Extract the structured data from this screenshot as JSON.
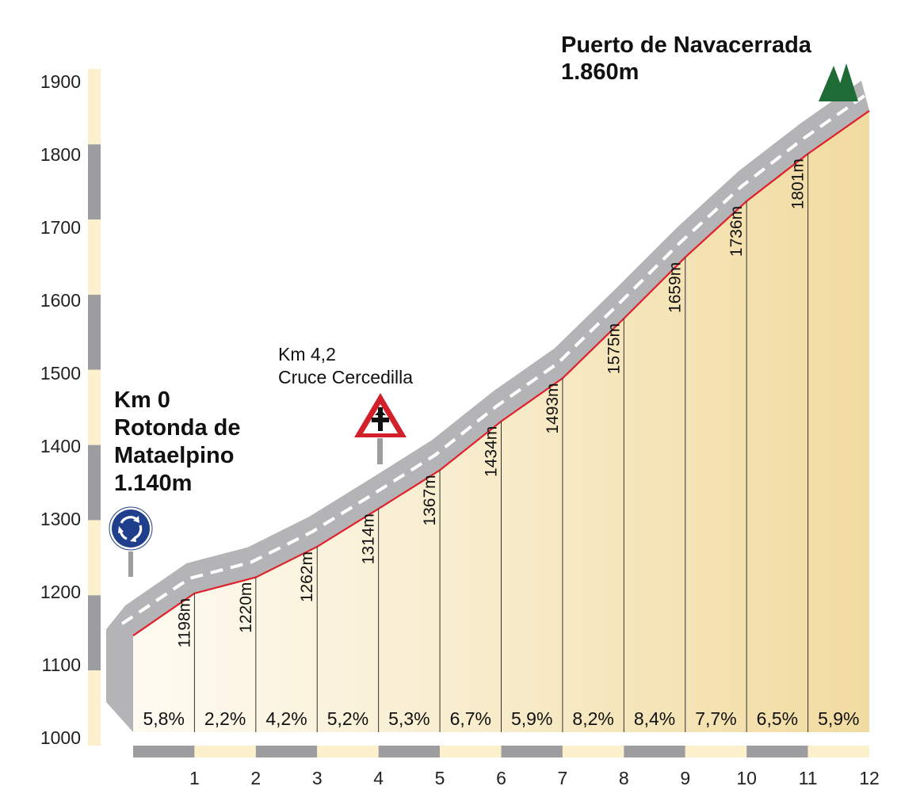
{
  "summit": {
    "name": "Puerto de Navacerrada",
    "altitude": "1.860m"
  },
  "start": {
    "km": "Km 0",
    "name_line1": "Rotonda de",
    "name_line2": "Mataelpino",
    "altitude": "1.140m"
  },
  "junction": {
    "km": "Km 4,2",
    "name": "Cruce Cercedilla"
  },
  "chart_data": {
    "type": "area",
    "title": "",
    "xlabel": "",
    "ylabel": "",
    "x": [
      0,
      1,
      2,
      3,
      4,
      5,
      6,
      7,
      8,
      9,
      10,
      11,
      12
    ],
    "y": [
      1140,
      1198,
      1220,
      1262,
      1314,
      1367,
      1434,
      1493,
      1575,
      1659,
      1736,
      1801,
      1860
    ],
    "xlim": [
      0,
      12
    ],
    "ylim": [
      1000,
      1900
    ],
    "y_ticks": [
      "1000",
      "1100",
      "1200",
      "1300",
      "1400",
      "1500",
      "1600",
      "1700",
      "1800",
      "1900"
    ],
    "x_ticks": [
      "1",
      "2",
      "3",
      "4",
      "5",
      "6",
      "7",
      "8",
      "9",
      "10",
      "11",
      "12"
    ],
    "altitude_labels": [
      "1198m",
      "1220m",
      "1262m",
      "1314m",
      "1367m",
      "1434m",
      "1493m",
      "1575m",
      "1659m",
      "1736m",
      "1801m"
    ],
    "gradients": [
      "5,8%",
      "2,2%",
      "4,2%",
      "5,2%",
      "5,3%",
      "6,7%",
      "5,9%",
      "8,2%",
      "8,4%",
      "7,7%",
      "6,5%",
      "5,9%"
    ],
    "colors": {
      "profile_line": "#e0202c",
      "road": "#b4b4b6",
      "fill_light": "#fefbf2",
      "fill_dark": "#f1dba0",
      "scale_gray": "#9d9d9f",
      "scale_cream": "#fdf0cc",
      "summit_tree": "#1e6b35",
      "roundabout_blue": "#1f3f8c",
      "warning_red": "#d2202a"
    },
    "grid": false,
    "legend": "none"
  }
}
